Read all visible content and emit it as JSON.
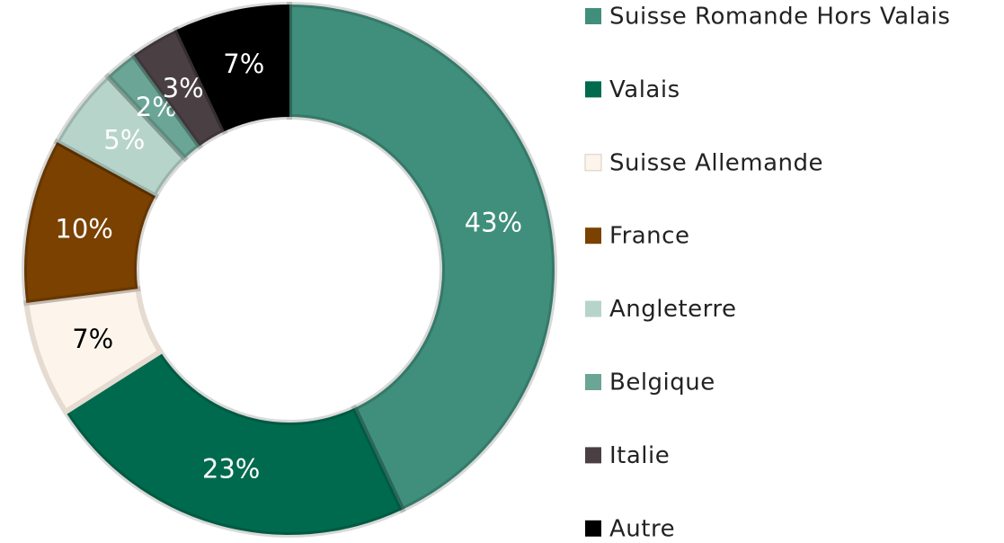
{
  "chart_data": {
    "type": "donut",
    "categories": [
      "Suisse Romande Hors Valais",
      "Valais",
      "Suisse Allemande",
      "France",
      "Angleterre",
      "Belgique",
      "Italie",
      "Autre"
    ],
    "values": [
      43,
      23,
      7,
      10,
      5,
      2,
      3,
      7
    ],
    "value_labels": [
      "43%",
      "23%",
      "7%",
      "10%",
      "5%",
      "2%",
      "3%",
      "7%"
    ],
    "colors": [
      "#3f8f7c",
      "#006a4e",
      "#fdf5ec",
      "#7a4100",
      "#b7d4cb",
      "#6aa595",
      "#4a4044",
      "#000000"
    ],
    "legend": "right"
  }
}
